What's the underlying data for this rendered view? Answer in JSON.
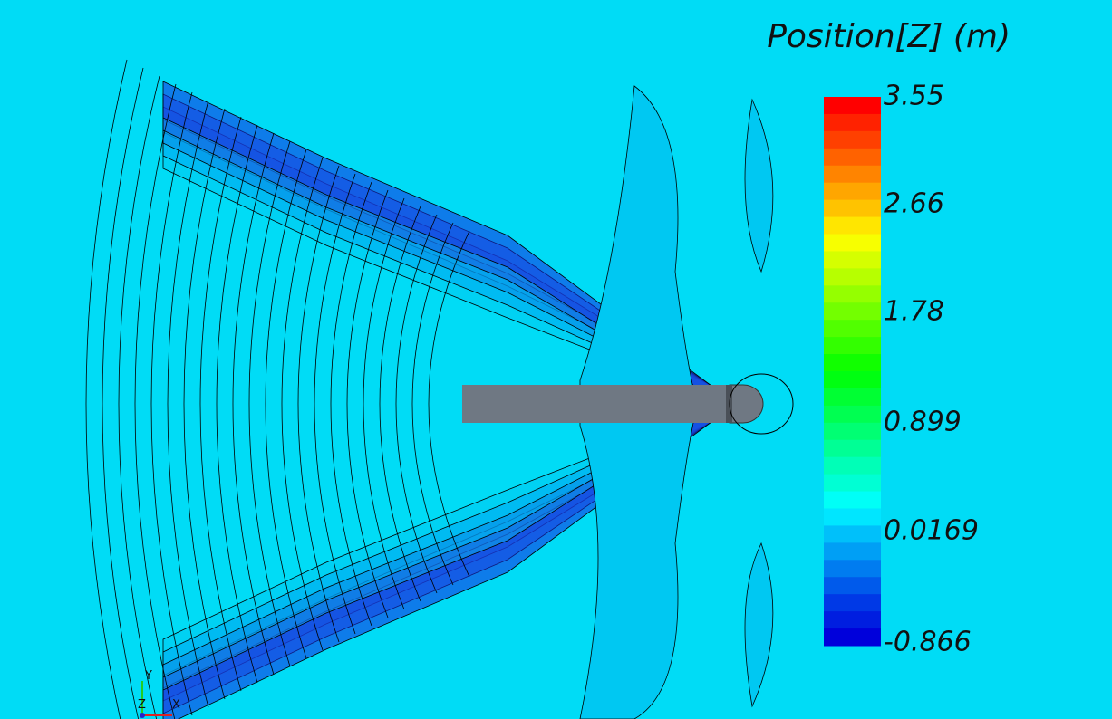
{
  "legend": {
    "title": "Position[Z] (m)",
    "labels": [
      "3.55",
      "2.66",
      "1.78",
      "0.899",
      "0.0169",
      "-0.866"
    ]
  },
  "triad": {
    "y": "Y",
    "z": "Z",
    "x": "X"
  }
}
